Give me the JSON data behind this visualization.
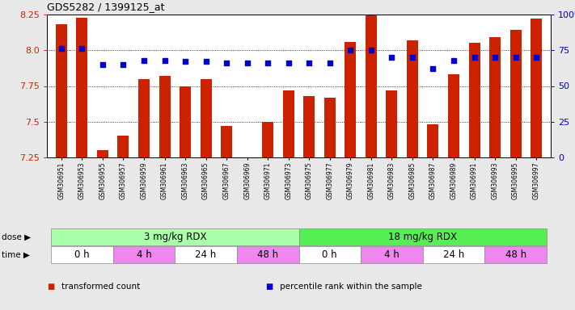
{
  "title": "GDS5282 / 1399125_at",
  "samples": [
    "GSM306951",
    "GSM306953",
    "GSM306955",
    "GSM306957",
    "GSM306959",
    "GSM306961",
    "GSM306963",
    "GSM306965",
    "GSM306967",
    "GSM306969",
    "GSM306971",
    "GSM306973",
    "GSM306975",
    "GSM306977",
    "GSM306979",
    "GSM306981",
    "GSM306983",
    "GSM306985",
    "GSM306987",
    "GSM306989",
    "GSM306991",
    "GSM306993",
    "GSM306995",
    "GSM306997"
  ],
  "bar_values": [
    8.18,
    8.23,
    7.3,
    7.4,
    7.8,
    7.82,
    7.75,
    7.8,
    7.47,
    7.2,
    7.5,
    7.72,
    7.68,
    7.67,
    8.06,
    8.25,
    7.72,
    8.07,
    7.48,
    7.83,
    8.05,
    8.09,
    8.14,
    8.22
  ],
  "percentile_values": [
    76,
    76,
    65,
    65,
    68,
    68,
    67,
    67,
    66,
    66,
    66,
    66,
    66,
    66,
    75,
    75,
    70,
    70,
    62,
    68,
    70,
    70,
    70,
    70
  ],
  "ylim_left": [
    7.25,
    8.25
  ],
  "ylim_right": [
    0,
    100
  ],
  "yticks_left": [
    7.25,
    7.5,
    7.75,
    8.0,
    8.25
  ],
  "yticks_right": [
    0,
    25,
    50,
    75,
    100
  ],
  "bar_color": "#cc2200",
  "dot_color": "#0000cc",
  "background_color": "#e8e8e8",
  "plot_bg_color": "#ffffff",
  "dose_groups": [
    {
      "label": "3 mg/kg RDX",
      "start": 0,
      "end": 12,
      "color": "#aaffaa"
    },
    {
      "label": "18 mg/kg RDX",
      "start": 12,
      "end": 24,
      "color": "#55ee55"
    }
  ],
  "time_groups": [
    {
      "label": "0 h",
      "start": 0,
      "end": 3,
      "color": "#ffffff"
    },
    {
      "label": "4 h",
      "start": 3,
      "end": 6,
      "color": "#ee88ee"
    },
    {
      "label": "24 h",
      "start": 6,
      "end": 9,
      "color": "#ffffff"
    },
    {
      "label": "48 h",
      "start": 9,
      "end": 12,
      "color": "#ee88ee"
    },
    {
      "label": "0 h",
      "start": 12,
      "end": 15,
      "color": "#ffffff"
    },
    {
      "label": "4 h",
      "start": 15,
      "end": 18,
      "color": "#ee88ee"
    },
    {
      "label": "24 h",
      "start": 18,
      "end": 21,
      "color": "#ffffff"
    },
    {
      "label": "48 h",
      "start": 21,
      "end": 24,
      "color": "#ee88ee"
    }
  ],
  "legend_items": [
    {
      "label": "transformed count",
      "color": "#cc2200"
    },
    {
      "label": "percentile rank within the sample",
      "color": "#0000cc"
    }
  ],
  "dose_label": "dose",
  "time_label": "time"
}
